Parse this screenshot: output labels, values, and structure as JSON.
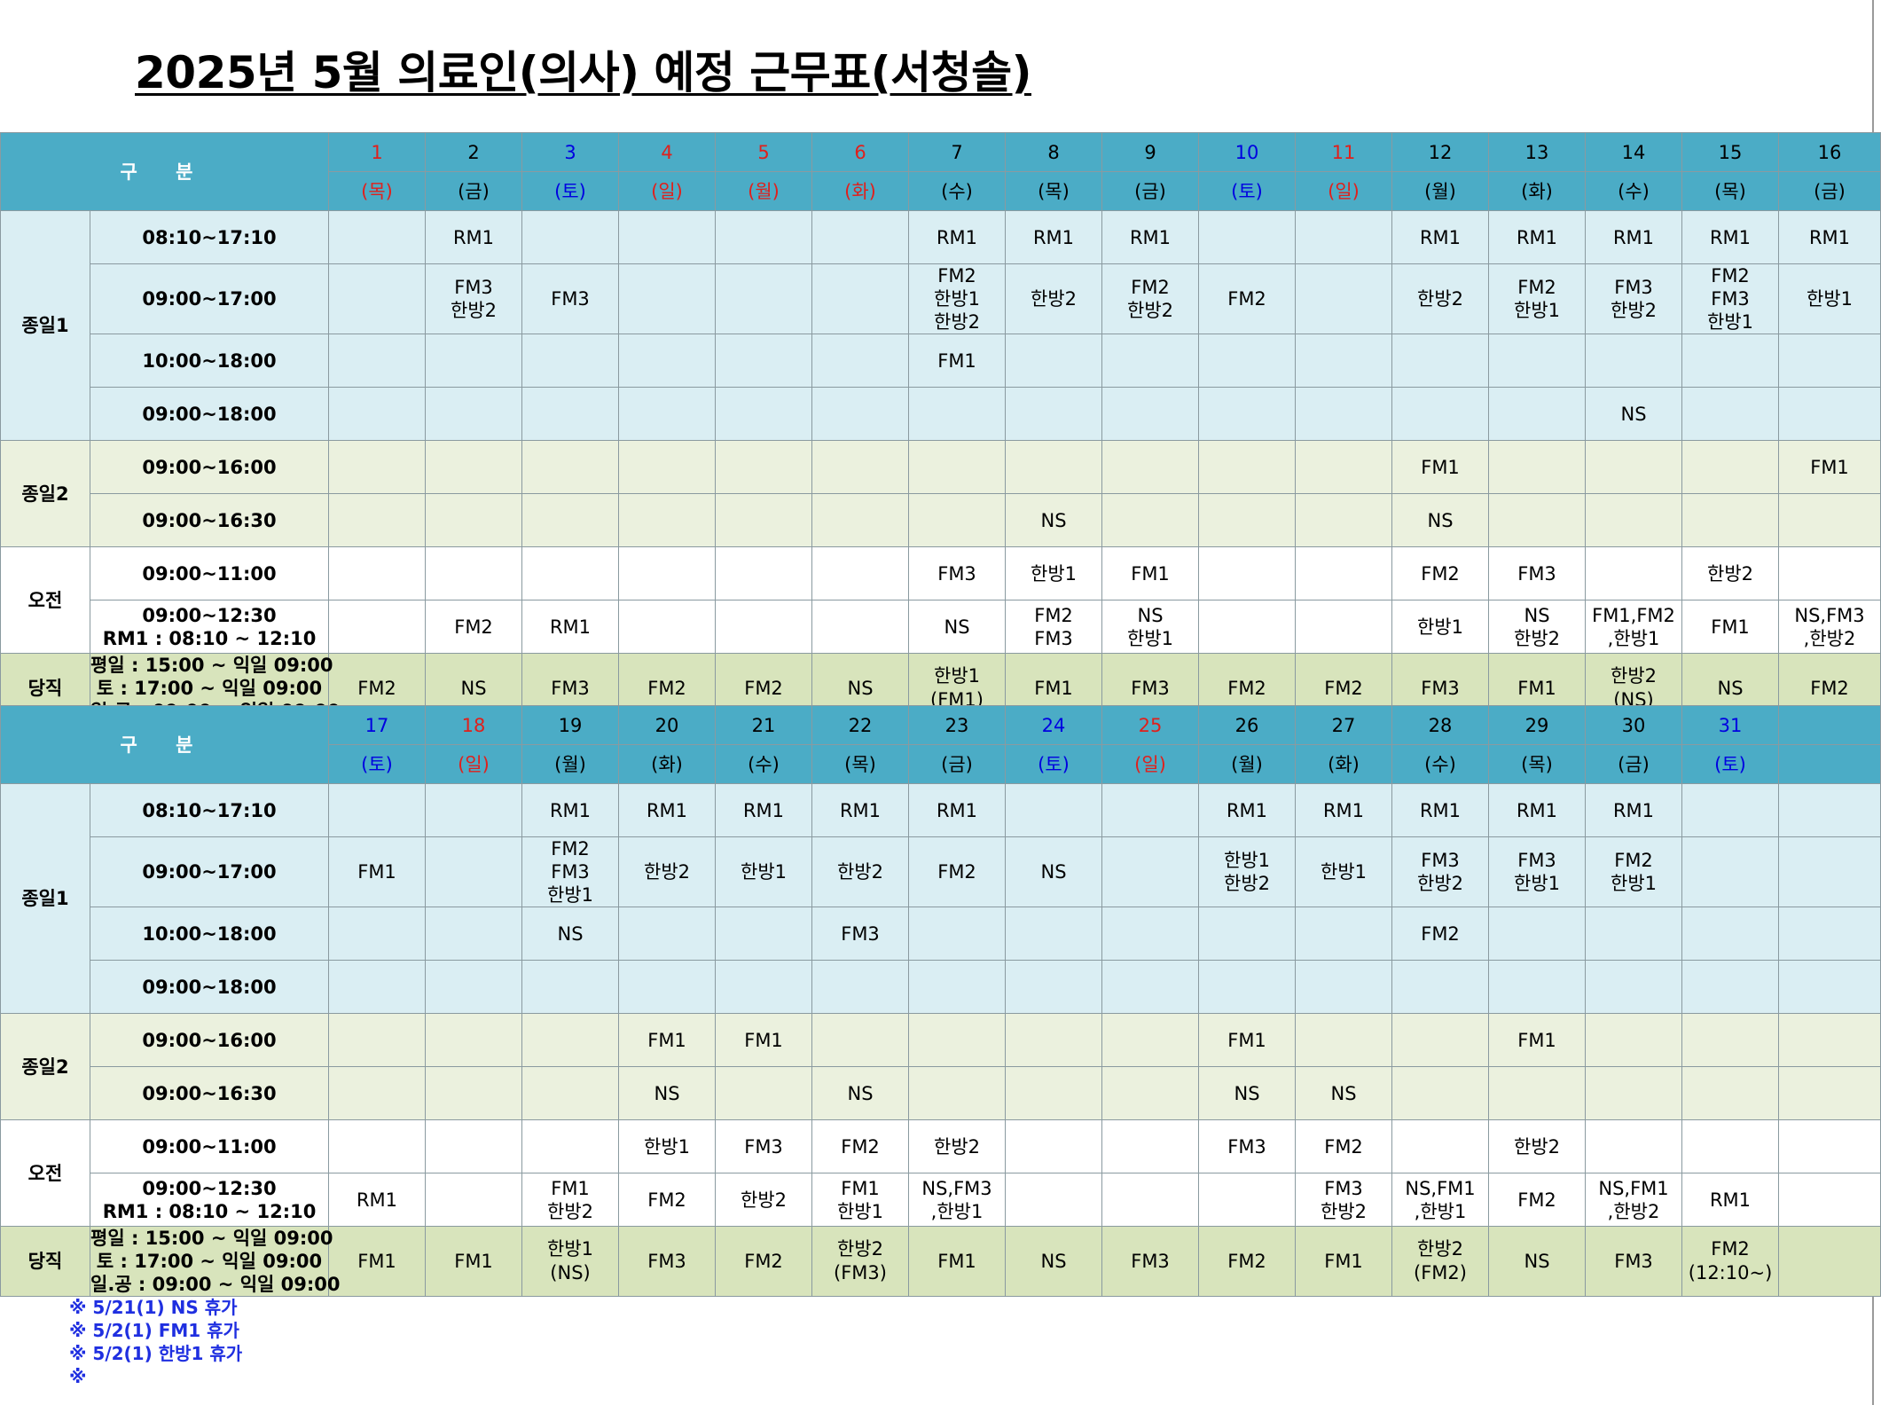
{
  "title": "2025년 5월  의료인(의사) 예정 근무표(서청솔)",
  "header_label": "구 분",
  "row_labels": {
    "cat1": "종일1",
    "cat2": "종일2",
    "cat3": "오전",
    "cat4": "당직",
    "t1": "08:10~17:10",
    "t2": "09:00~17:00",
    "t3": "10:00~18:00",
    "t4": "09:00~18:00",
    "t5": "09:00~16:00",
    "t6": "09:00~16:30",
    "t7": "09:00~11:00",
    "t8a": "09:00~12:30",
    "t8b": "RM1 : 08:10 ~ 12:10",
    "dang1": "평일 : 15:00 ~ 익일 09:00",
    "dang2": "토     : 17:00 ~ 익일 09:00",
    "dang3": "일.공 : 09:00 ~ 익일 09:00"
  },
  "colors": {
    "header": "#4bacc6",
    "band1": "#daeef3",
    "band2": "#ebf1de",
    "dang": "#d8e4bc",
    "holiday_red": "#e0201c",
    "saturday_blue": "#0000e0",
    "note_blue": "#1f2fe0"
  },
  "blocks": [
    {
      "days": [
        {
          "num": "1",
          "dow": "(목)",
          "color": "red"
        },
        {
          "num": "2",
          "dow": "(금)",
          "color": "black"
        },
        {
          "num": "3",
          "dow": "(토)",
          "color": "blue"
        },
        {
          "num": "4",
          "dow": "(일)",
          "color": "red"
        },
        {
          "num": "5",
          "dow": "(월)",
          "color": "red"
        },
        {
          "num": "6",
          "dow": "(화)",
          "color": "red"
        },
        {
          "num": "7",
          "dow": "(수)",
          "color": "black"
        },
        {
          "num": "8",
          "dow": "(목)",
          "color": "black"
        },
        {
          "num": "9",
          "dow": "(금)",
          "color": "black"
        },
        {
          "num": "10",
          "dow": "(토)",
          "color": "blue"
        },
        {
          "num": "11",
          "dow": "(일)",
          "color": "red"
        },
        {
          "num": "12",
          "dow": "(월)",
          "color": "black"
        },
        {
          "num": "13",
          "dow": "(화)",
          "color": "black"
        },
        {
          "num": "14",
          "dow": "(수)",
          "color": "black"
        },
        {
          "num": "15",
          "dow": "(목)",
          "color": "black"
        },
        {
          "num": "16",
          "dow": "(금)",
          "color": "black"
        }
      ],
      "rows": [
        [
          "",
          "RM1",
          "",
          "",
          "",
          "",
          "RM1",
          "RM1",
          "RM1",
          "",
          "",
          "RM1",
          "RM1",
          "RM1",
          "RM1",
          "RM1"
        ],
        [
          "",
          "FM3\n한방2",
          "FM3",
          "",
          "",
          "",
          "FM2\n한방1\n한방2",
          "한방2",
          "FM2\n한방2",
          "FM2",
          "",
          "한방2",
          "FM2\n한방1",
          "FM3\n한방2",
          "FM2\nFM3\n한방1",
          "한방1"
        ],
        [
          "",
          "",
          "",
          "",
          "",
          "",
          "FM1",
          "",
          "",
          "",
          "",
          "",
          "",
          "",
          "",
          ""
        ],
        [
          "",
          "",
          "",
          "",
          "",
          "",
          "",
          "",
          "",
          "",
          "",
          "",
          "",
          "NS",
          "",
          ""
        ],
        [
          "",
          "",
          "",
          "",
          "",
          "",
          "",
          "",
          "",
          "",
          "",
          "FM1",
          "",
          "",
          "",
          "FM1"
        ],
        [
          "",
          "",
          "",
          "",
          "",
          "",
          "",
          "NS",
          "",
          "",
          "",
          "NS",
          "",
          "",
          "",
          ""
        ],
        [
          "",
          "",
          "",
          "",
          "",
          "",
          "FM3",
          "한방1",
          "FM1",
          "",
          "",
          "FM2",
          "FM3",
          "",
          "한방2",
          ""
        ],
        [
          "",
          "FM2",
          "RM1",
          "",
          "",
          "",
          "NS",
          "FM2\nFM3",
          "NS\n한방1",
          "",
          "",
          "한방1",
          "NS\n한방2",
          "FM1,FM2\n,한방1",
          "FM1",
          "NS,FM3\n,한방2"
        ],
        [
          "FM2",
          "NS",
          "FM3",
          "FM2",
          "FM2",
          "NS",
          "한방1\n(FM1)",
          "FM1",
          "FM3",
          "FM2",
          "FM2",
          "FM3",
          "FM1",
          "한방2\n(NS)",
          "NS",
          "FM2"
        ]
      ]
    },
    {
      "days": [
        {
          "num": "17",
          "dow": "(토)",
          "color": "blue"
        },
        {
          "num": "18",
          "dow": "(일)",
          "color": "red"
        },
        {
          "num": "19",
          "dow": "(월)",
          "color": "black"
        },
        {
          "num": "20",
          "dow": "(화)",
          "color": "black"
        },
        {
          "num": "21",
          "dow": "(수)",
          "color": "black"
        },
        {
          "num": "22",
          "dow": "(목)",
          "color": "black"
        },
        {
          "num": "23",
          "dow": "(금)",
          "color": "black"
        },
        {
          "num": "24",
          "dow": "(토)",
          "color": "blue"
        },
        {
          "num": "25",
          "dow": "(일)",
          "color": "red"
        },
        {
          "num": "26",
          "dow": "(월)",
          "color": "black"
        },
        {
          "num": "27",
          "dow": "(화)",
          "color": "black"
        },
        {
          "num": "28",
          "dow": "(수)",
          "color": "black"
        },
        {
          "num": "29",
          "dow": "(목)",
          "color": "black"
        },
        {
          "num": "30",
          "dow": "(금)",
          "color": "black"
        },
        {
          "num": "31",
          "dow": "(토)",
          "color": "blue"
        },
        {
          "num": "",
          "dow": "",
          "color": "black"
        }
      ],
      "rows": [
        [
          "",
          "",
          "RM1",
          "RM1",
          "RM1",
          "RM1",
          "RM1",
          "",
          "",
          "RM1",
          "RM1",
          "RM1",
          "RM1",
          "RM1",
          "",
          ""
        ],
        [
          "FM1",
          "",
          "FM2\nFM3\n한방1",
          "한방2",
          "한방1",
          "한방2",
          "FM2",
          "NS",
          "",
          "한방1\n한방2",
          "한방1",
          "FM3\n한방2",
          "FM3\n한방1",
          "FM2\n한방1",
          "",
          ""
        ],
        [
          "",
          "",
          "NS",
          "",
          "",
          "FM3",
          "",
          "",
          "",
          "",
          "",
          "FM2",
          "",
          "",
          "",
          ""
        ],
        [
          "",
          "",
          "",
          "",
          "",
          "",
          "",
          "",
          "",
          "",
          "",
          "",
          "",
          "",
          "",
          ""
        ],
        [
          "",
          "",
          "",
          "FM1",
          "FM1",
          "",
          "",
          "",
          "",
          "FM1",
          "",
          "",
          "FM1",
          "",
          "",
          ""
        ],
        [
          "",
          "",
          "",
          "NS",
          "",
          "NS",
          "",
          "",
          "",
          "NS",
          "NS",
          "",
          "",
          "",
          "",
          ""
        ],
        [
          "",
          "",
          "",
          "한방1",
          "FM3",
          "FM2",
          "한방2",
          "",
          "",
          "FM3",
          "FM2",
          "",
          "한방2",
          "",
          "",
          ""
        ],
        [
          "RM1",
          "",
          "FM1\n한방2",
          "FM2",
          "한방2",
          "FM1\n한방1",
          "NS,FM3\n,한방1",
          "",
          "",
          "",
          "FM3\n한방2",
          "NS,FM1\n,한방1",
          "FM2",
          "NS,FM1\n,한방2",
          "RM1",
          ""
        ],
        [
          "FM1",
          "FM1",
          "한방1\n(NS)",
          "FM3",
          "FM2",
          "한방2\n(FM3)",
          "FM1",
          "NS",
          "FM3",
          "FM2",
          "FM1",
          "한방2\n(FM2)",
          "NS",
          "FM3",
          "FM2\n(12:10~)",
          ""
        ]
      ]
    }
  ],
  "notes": [
    "※ 5/21(1) NS 휴가",
    "※ 5/2(1) FM1 휴가",
    "※ 5/2(1) 한방1 휴가",
    "※"
  ]
}
